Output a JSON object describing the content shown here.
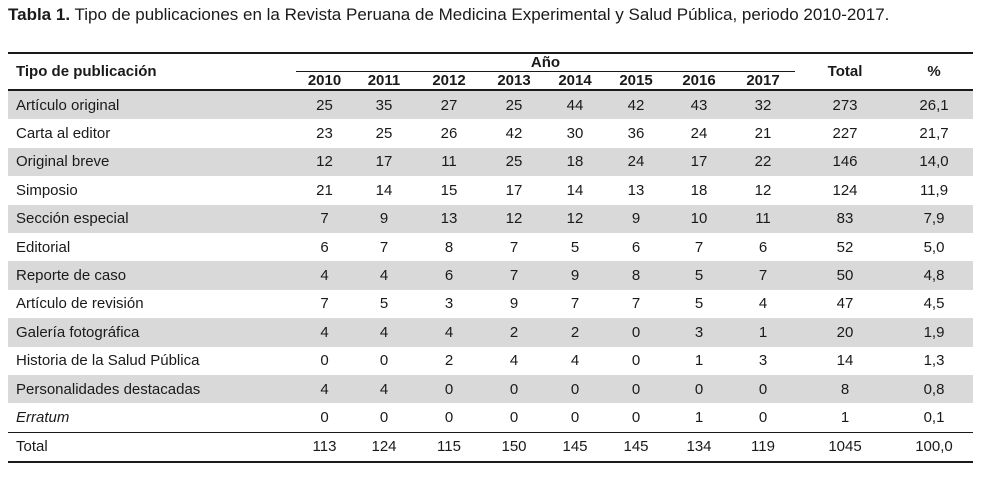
{
  "caption": {
    "label": "Tabla 1.",
    "text": " Tipo de publicaciones en la Revista Peruana de Medicina Experimental y Salud Pública, periodo 2010-2017."
  },
  "table": {
    "col_type": "Tipo de publicación",
    "col_year_group": "Año",
    "years": [
      "2010",
      "2011",
      "2012",
      "2013",
      "2014",
      "2015",
      "2016",
      "2017"
    ],
    "col_total": "Total",
    "col_pct": "%",
    "rows": [
      {
        "label": "Artículo original",
        "values": [
          "25",
          "35",
          "27",
          "25",
          "44",
          "42",
          "43",
          "32"
        ],
        "total": "273",
        "pct": "26,1"
      },
      {
        "label": "Carta al editor",
        "values": [
          "23",
          "25",
          "26",
          "42",
          "30",
          "36",
          "24",
          "21"
        ],
        "total": "227",
        "pct": "21,7"
      },
      {
        "label": "Original breve",
        "values": [
          "12",
          "17",
          "11",
          "25",
          "18",
          "24",
          "17",
          "22"
        ],
        "total": "146",
        "pct": "14,0"
      },
      {
        "label": "Simposio",
        "values": [
          "21",
          "14",
          "15",
          "17",
          "14",
          "13",
          "18",
          "12"
        ],
        "total": "124",
        "pct": "11,9"
      },
      {
        "label": "Sección especial",
        "values": [
          "7",
          "9",
          "13",
          "12",
          "12",
          "9",
          "10",
          "11"
        ],
        "total": "83",
        "pct": "7,9"
      },
      {
        "label": "Editorial",
        "values": [
          "6",
          "7",
          "8",
          "7",
          "5",
          "6",
          "7",
          "6"
        ],
        "total": "52",
        "pct": "5,0"
      },
      {
        "label": "Reporte de caso",
        "values": [
          "4",
          "4",
          "6",
          "7",
          "9",
          "8",
          "5",
          "7"
        ],
        "total": "50",
        "pct": "4,8"
      },
      {
        "label": "Artículo de revisión",
        "values": [
          "7",
          "5",
          "3",
          "9",
          "7",
          "7",
          "5",
          "4"
        ],
        "total": "47",
        "pct": "4,5"
      },
      {
        "label": "Galería fotográfica",
        "values": [
          "4",
          "4",
          "4",
          "2",
          "2",
          "0",
          "3",
          "1"
        ],
        "total": "20",
        "pct": "1,9"
      },
      {
        "label": "Historia de la Salud Pública",
        "values": [
          "0",
          "0",
          "2",
          "4",
          "4",
          "0",
          "1",
          "3"
        ],
        "total": "14",
        "pct": "1,3"
      },
      {
        "label": "Personalidades destacadas",
        "values": [
          "4",
          "4",
          "0",
          "0",
          "0",
          "0",
          "0",
          "0"
        ],
        "total": "8",
        "pct": "0,8"
      },
      {
        "label": "Erratum",
        "values": [
          "0",
          "0",
          "0",
          "0",
          "0",
          "0",
          "1",
          "0"
        ],
        "total": "1",
        "pct": "0,1",
        "italic": true
      }
    ],
    "total_row": {
      "label": "Total",
      "values": [
        "113",
        "124",
        "115",
        "150",
        "145",
        "145",
        "134",
        "119"
      ],
      "total": "1045",
      "pct": "100,0"
    }
  }
}
